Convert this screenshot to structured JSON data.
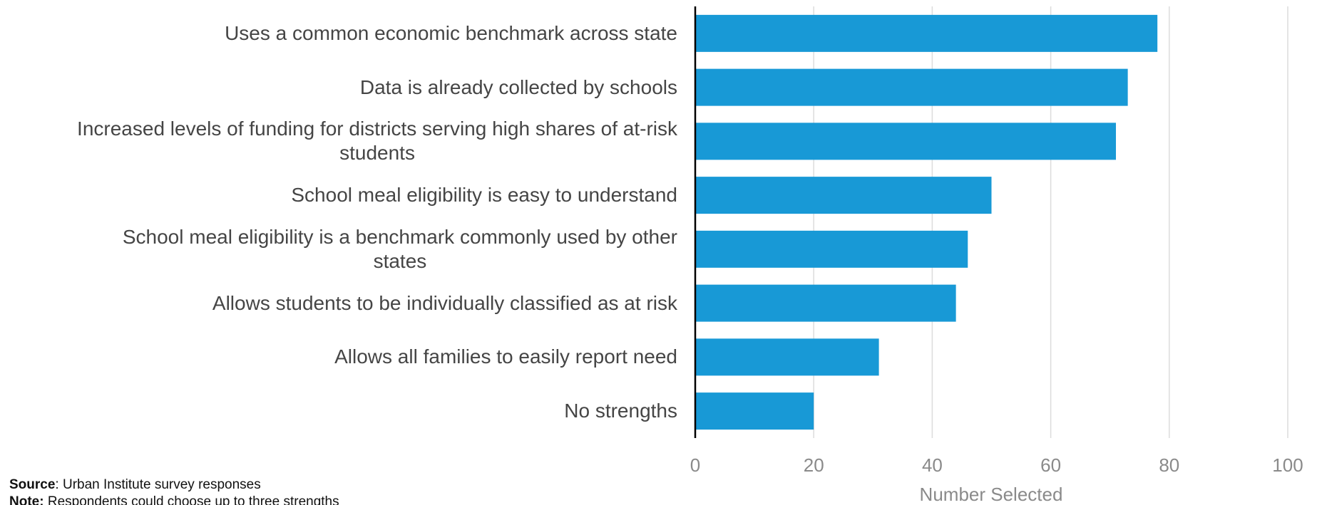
{
  "chart_data": {
    "type": "bar",
    "orientation": "horizontal",
    "categories": [
      "Uses a common economic benchmark across state",
      "Data is already collected by schools",
      "Increased levels of funding for districts serving high shares of at-risk\nstudents",
      "School meal eligibility is easy to understand",
      "School meal eligibility is a benchmark commonly used by other\nstates",
      "Allows students to be individually classified as at risk",
      "Allows all families to easily report need",
      "No strengths"
    ],
    "values": [
      78,
      73,
      71,
      50,
      46,
      44,
      31,
      20
    ],
    "color": "#1899d6",
    "xlabel": "Number Selected",
    "xlim": [
      0,
      100
    ],
    "xticks": [
      0,
      20,
      40,
      60,
      80,
      100
    ],
    "grid": true,
    "source": {
      "label": "Source",
      "text": ": Urban Institute survey responses"
    },
    "note": {
      "label": "Note:",
      "text": " Respondents could choose up to three strengths"
    }
  }
}
